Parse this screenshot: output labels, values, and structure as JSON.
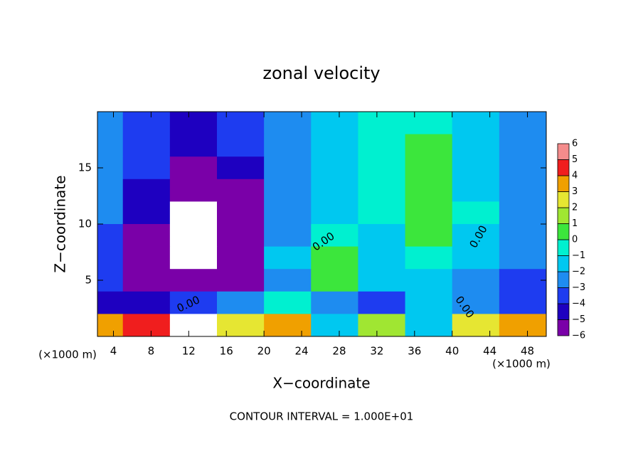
{
  "chart_data": {
    "type": "heatmap",
    "title": "zonal velocity",
    "x_label": "X−coordinate",
    "y_label": "Z−coordinate",
    "x_unit": "(×1000 m)",
    "x_unit_right": "(×1000 m)",
    "footer": "CONTOUR INTERVAL = 1.000E+01",
    "contour_labels": [
      "0.00",
      "0.00",
      "0.00",
      "0.00"
    ],
    "xlim": [
      2.3,
      50
    ],
    "ylim": [
      0,
      20
    ],
    "xticks": [
      4,
      8,
      12,
      16,
      20,
      24,
      28,
      32,
      36,
      40,
      44,
      48
    ],
    "yticks": [
      5,
      10,
      15
    ],
    "x": [
      2.5,
      7.5,
      12.5,
      17.5,
      22.5,
      27.5,
      32.5,
      37.5,
      42.5,
      47.5
    ],
    "z": [
      19,
      17,
      15,
      13,
      11,
      9,
      7,
      5,
      3,
      1
    ],
    "values": [
      [
        -2,
        -3,
        -4,
        -3,
        -2,
        -1,
        0,
        0,
        -1,
        -2
      ],
      [
        -2,
        -3,
        -4,
        -3,
        -2,
        -1,
        0,
        0.5,
        -1,
        -2
      ],
      [
        -2,
        -3,
        -5,
        -4,
        -2,
        -1,
        0,
        0.5,
        -1,
        -2
      ],
      [
        -2,
        -4,
        -6,
        -5,
        -2,
        -1,
        0,
        1,
        -1,
        -2
      ],
      [
        -2,
        -4,
        -7,
        -6,
        -2,
        -1,
        0,
        1,
        0,
        -2
      ],
      [
        -3,
        -5,
        -7,
        -6,
        -2,
        0,
        -1,
        1,
        -1,
        -2
      ],
      [
        -3,
        -5,
        -7,
        -5,
        -1,
        1,
        -1,
        -0.5,
        -1,
        -2
      ],
      [
        -3,
        -5,
        -5,
        -5,
        -2,
        1,
        -1,
        -1,
        -2,
        -3
      ],
      [
        -4,
        -4,
        -3,
        -2,
        0,
        -2,
        -3,
        -1,
        -2,
        -3
      ],
      [
        4,
        5,
        -7,
        3,
        4,
        -1,
        2,
        -1,
        3,
        4
      ]
    ],
    "colorbar_levels": [
      -6,
      -5,
      -4,
      -3,
      -2,
      -1,
      0,
      1,
      2,
      3,
      4,
      5,
      6
    ],
    "colorbar_labels": [
      "−6",
      "−5",
      "−4",
      "−3",
      "−2",
      "−1",
      "0",
      "1",
      "2",
      "3",
      "4",
      "5",
      "6"
    ],
    "colors": [
      "#7a00a8",
      "#1e00c0",
      "#1e3cf0",
      "#1e8cf0",
      "#00c8f0",
      "#00f0d0",
      "#3ce63c",
      "#a0e632",
      "#e6e632",
      "#f0a000",
      "#f01e1e",
      "#f48c8c"
    ],
    "out_of_range_color": "#ffffff"
  }
}
